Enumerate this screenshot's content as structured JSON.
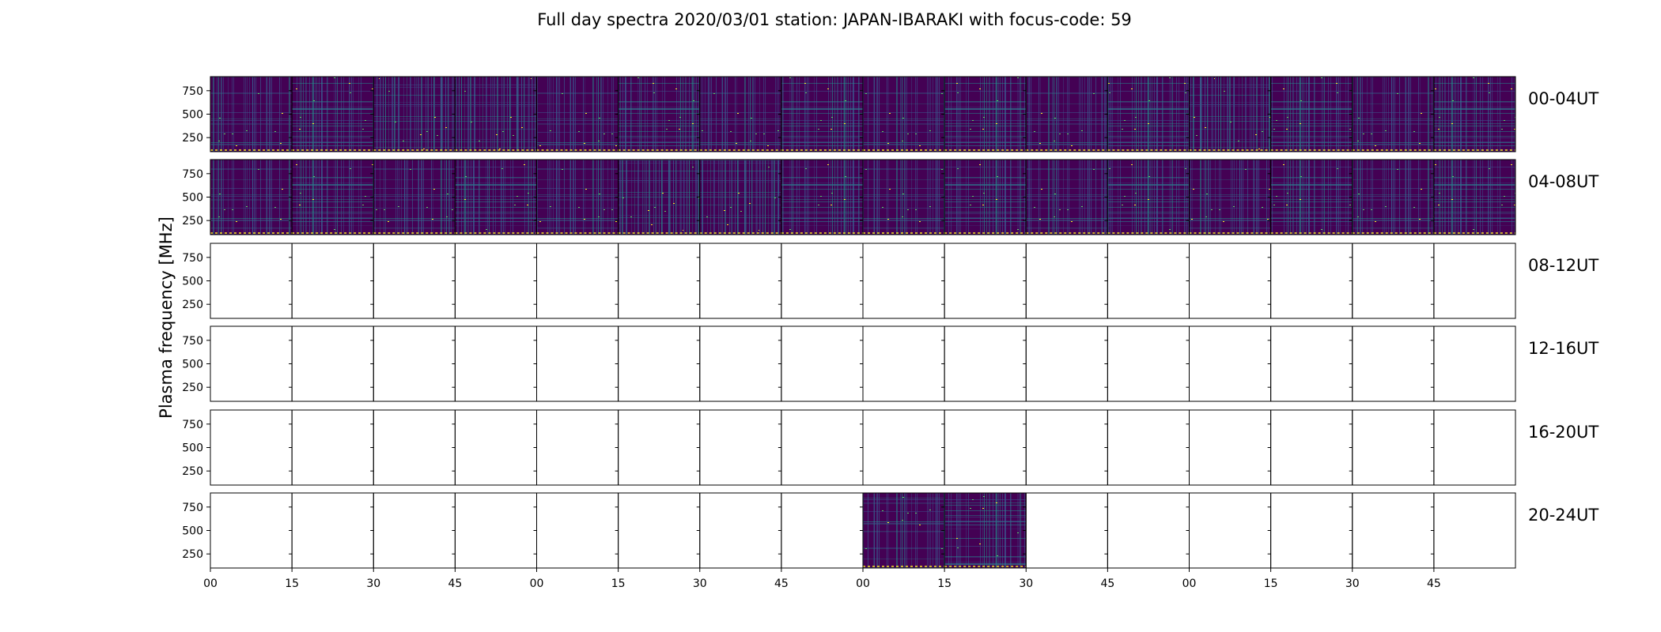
{
  "chart_data": {
    "type": "heatmap",
    "title": "Full day spectra 2020/03/01 station: JAPAN-IBARAKI with focus-code: 59",
    "ylabel": "Plasma frequency [MHz]",
    "ylim": [
      100,
      900
    ],
    "yticks": [
      "750",
      "500",
      "250"
    ],
    "ytick_values": [
      750,
      500,
      250
    ],
    "xticks": [
      "00",
      "15",
      "30",
      "45",
      "00",
      "15",
      "30",
      "45",
      "00",
      "15",
      "30",
      "45",
      "00",
      "15",
      "30",
      "45"
    ],
    "xtick_values_min": [
      0,
      15,
      30,
      45,
      60,
      75,
      90,
      105,
      120,
      135,
      150,
      165,
      180,
      195,
      210,
      225
    ],
    "panels_per_row": 16,
    "panel_minutes": 15,
    "rows": [
      {
        "label": "00-04UT",
        "filled": [
          1,
          1,
          1,
          1,
          1,
          1,
          1,
          1,
          1,
          1,
          1,
          1,
          1,
          1,
          1,
          1
        ],
        "bright": [
          2,
          3,
          12
        ]
      },
      {
        "label": "04-08UT",
        "filled": [
          1,
          1,
          1,
          1,
          1,
          1,
          1,
          1,
          1,
          1,
          1,
          1,
          1,
          1,
          1,
          1
        ],
        "bright": [
          5,
          6
        ]
      },
      {
        "label": "08-12UT",
        "filled": [
          0,
          0,
          0,
          0,
          0,
          0,
          0,
          0,
          0,
          0,
          0,
          0,
          0,
          0,
          0,
          0
        ],
        "bright": []
      },
      {
        "label": "12-16UT",
        "filled": [
          0,
          0,
          0,
          0,
          0,
          0,
          0,
          0,
          0,
          0,
          0,
          0,
          0,
          0,
          0,
          0
        ],
        "bright": []
      },
      {
        "label": "16-20UT",
        "filled": [
          0,
          0,
          0,
          0,
          0,
          0,
          0,
          0,
          0,
          0,
          0,
          0,
          0,
          0,
          0,
          0
        ],
        "bright": []
      },
      {
        "label": "20-24UT",
        "filled": [
          0,
          0,
          0,
          0,
          0,
          0,
          0,
          0,
          1,
          1,
          0,
          0,
          0,
          0,
          0,
          0
        ],
        "bright": []
      }
    ],
    "colormap": "viridis",
    "colors": {
      "dark": "#440154",
      "mid": "#3b528b",
      "teal": "#21918c",
      "bright": "#5ec962",
      "hot": "#fde725"
    }
  }
}
